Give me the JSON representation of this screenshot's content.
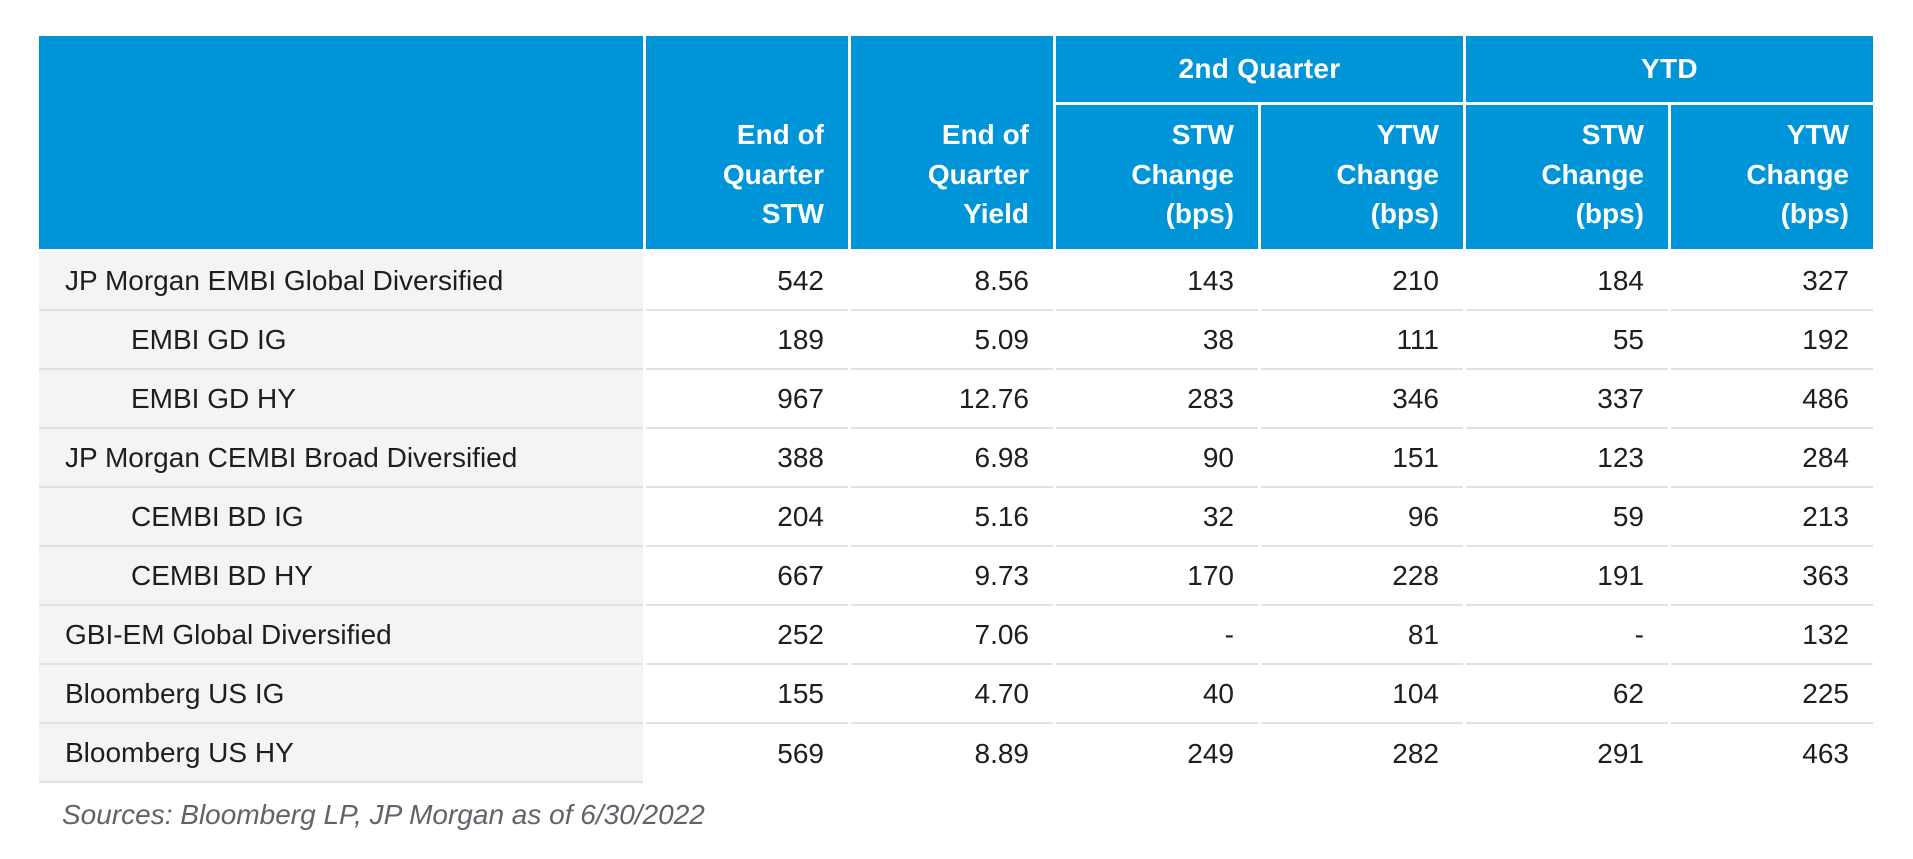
{
  "colors": {
    "header_blue": "#0095d8",
    "label_column_bg": "#f4f4f4",
    "row_separator": "#e2e2e2",
    "body_text": "#1e1e1e",
    "header_text": "#ffffff",
    "sources_text": "#5f646b"
  },
  "header": {
    "corner": "",
    "groups": [
      {
        "label": "2nd Quarter"
      },
      {
        "label": "YTD"
      }
    ],
    "col_stw": "End of\nQuarter\nSTW",
    "col_yield": "End of\nQuarter\nYield",
    "sub": [
      "STW\nChange\n(bps)",
      "YTW\nChange\n(bps)",
      "STW\nChange\n(bps)",
      "YTW\nChange\n(bps)"
    ]
  },
  "chart_data": {
    "type": "table",
    "title": "",
    "column_groups": [
      {
        "label": "2nd Quarter",
        "columns": [
          "STW Change (bps)",
          "YTW Change (bps)"
        ]
      },
      {
        "label": "YTD",
        "columns": [
          "STW Change (bps)",
          "YTW Change (bps)"
        ]
      }
    ],
    "columns": [
      "End of Quarter STW",
      "End of Quarter Yield",
      "2nd Quarter STW Change (bps)",
      "2nd Quarter YTW Change (bps)",
      "YTD STW Change (bps)",
      "YTD YTW Change (bps)"
    ],
    "rows": [
      {
        "label": "JP Morgan EMBI Global Diversified",
        "indent": false,
        "values": [
          "542",
          "8.56",
          "143",
          "210",
          "184",
          "327"
        ]
      },
      {
        "label": "EMBI GD IG",
        "indent": true,
        "values": [
          "189",
          "5.09",
          "38",
          "111",
          "55",
          "192"
        ]
      },
      {
        "label": "EMBI GD HY",
        "indent": true,
        "values": [
          "967",
          "12.76",
          "283",
          "346",
          "337",
          "486"
        ]
      },
      {
        "label": "JP Morgan CEMBI Broad Diversified",
        "indent": false,
        "values": [
          "388",
          "6.98",
          "90",
          "151",
          "123",
          "284"
        ]
      },
      {
        "label": "CEMBI BD IG",
        "indent": true,
        "values": [
          "204",
          "5.16",
          "32",
          "96",
          "59",
          "213"
        ]
      },
      {
        "label": "CEMBI BD HY",
        "indent": true,
        "values": [
          "667",
          "9.73",
          "170",
          "228",
          "191",
          "363"
        ]
      },
      {
        "label": "GBI-EM Global Diversified",
        "indent": false,
        "values": [
          "252",
          "7.06",
          "-",
          "81",
          "-",
          "132"
        ]
      },
      {
        "label": "Bloomberg US IG",
        "indent": false,
        "values": [
          "155",
          "4.70",
          "40",
          "104",
          "62",
          "225"
        ]
      },
      {
        "label": "Bloomberg US HY",
        "indent": false,
        "values": [
          "569",
          "8.89",
          "249",
          "282",
          "291",
          "463"
        ]
      }
    ]
  },
  "footer": {
    "sources": "Sources: Bloomberg LP, JP Morgan as of 6/30/2022"
  }
}
